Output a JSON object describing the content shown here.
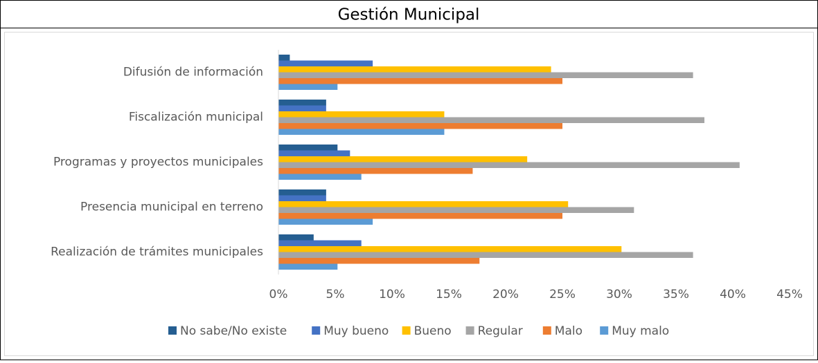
{
  "chart_data": {
    "type": "hbar",
    "title": "Gestión Municipal",
    "categories": [
      "Difusión de información",
      "Fiscalización municipal",
      "Programas y proyectos municipales",
      "Presencia municipal en terreno",
      "Realización de trámites municipales"
    ],
    "series": [
      {
        "name": "No sabe/No existe",
        "color": "#255e91",
        "values": [
          1.0,
          4.2,
          5.2,
          4.2,
          3.1
        ]
      },
      {
        "name": "Muy bueno",
        "color": "#4472c4",
        "values": [
          8.3,
          4.2,
          6.3,
          4.2,
          7.3
        ]
      },
      {
        "name": "Bueno",
        "color": "#ffc000",
        "values": [
          24.0,
          14.6,
          21.9,
          25.5,
          30.2
        ]
      },
      {
        "name": "Regular",
        "color": "#a5a5a5",
        "values": [
          36.5,
          37.5,
          40.6,
          31.3,
          36.5
        ]
      },
      {
        "name": "Malo",
        "color": "#ed7d31",
        "values": [
          25.0,
          25.0,
          17.1,
          25.0,
          17.7
        ]
      },
      {
        "name": "Muy malo",
        "color": "#5b9bd5",
        "values": [
          5.2,
          14.6,
          7.3,
          8.3,
          5.2
        ]
      }
    ],
    "xlim": [
      0,
      45
    ],
    "xticks": [
      {
        "value": 0,
        "label": "0%"
      },
      {
        "value": 5,
        "label": "5%"
      },
      {
        "value": 10,
        "label": "10%"
      },
      {
        "value": 15,
        "label": "15%"
      },
      {
        "value": 20,
        "label": "20%"
      },
      {
        "value": 25,
        "label": "25%"
      },
      {
        "value": 30,
        "label": "30%"
      },
      {
        "value": 35,
        "label": "35%"
      },
      {
        "value": 40,
        "label": "40%"
      },
      {
        "value": 45,
        "label": "45%"
      }
    ],
    "grid": false,
    "legend": "bottom"
  }
}
